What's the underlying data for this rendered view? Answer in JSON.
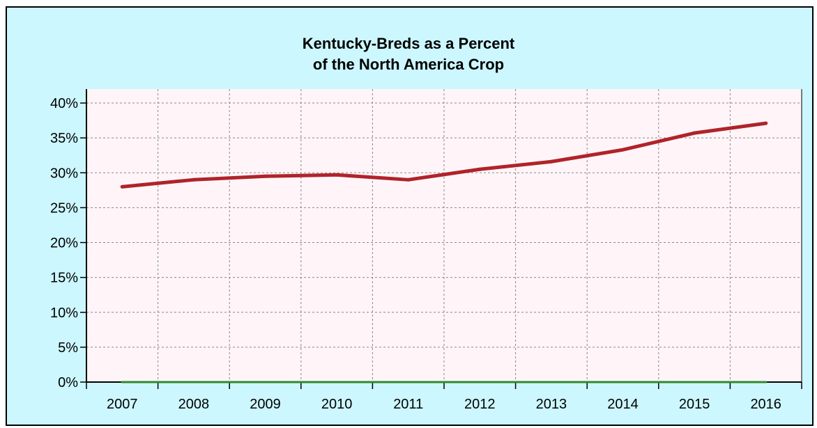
{
  "chart_data": {
    "type": "line",
    "title_lines": [
      "Kentucky-Breds as a Percent",
      "of the North America Crop"
    ],
    "x": [
      "2007",
      "2008",
      "2009",
      "2010",
      "2011",
      "2012",
      "2013",
      "2014",
      "2015",
      "2016"
    ],
    "y_ticks": [
      "0%",
      "5%",
      "10%",
      "15%",
      "20%",
      "25%",
      "30%",
      "35%",
      "40%"
    ],
    "y_tick_values": [
      0,
      5,
      10,
      15,
      20,
      25,
      30,
      35,
      40
    ],
    "ylim": [
      0,
      42
    ],
    "grid": true,
    "series": [
      {
        "values": [
          28.0,
          29.0,
          29.5,
          29.7,
          29.0,
          30.5,
          31.6,
          33.3,
          35.7,
          37.1
        ],
        "color": "#b0232a"
      },
      {
        "values": [
          0,
          0,
          0,
          0,
          0,
          0,
          0,
          0,
          0,
          0
        ],
        "color": "#2e8b2e"
      }
    ],
    "colors": {
      "frame_background": "#ccf7ff",
      "plot_background": "#fff5f8",
      "grid": "#888888"
    }
  }
}
